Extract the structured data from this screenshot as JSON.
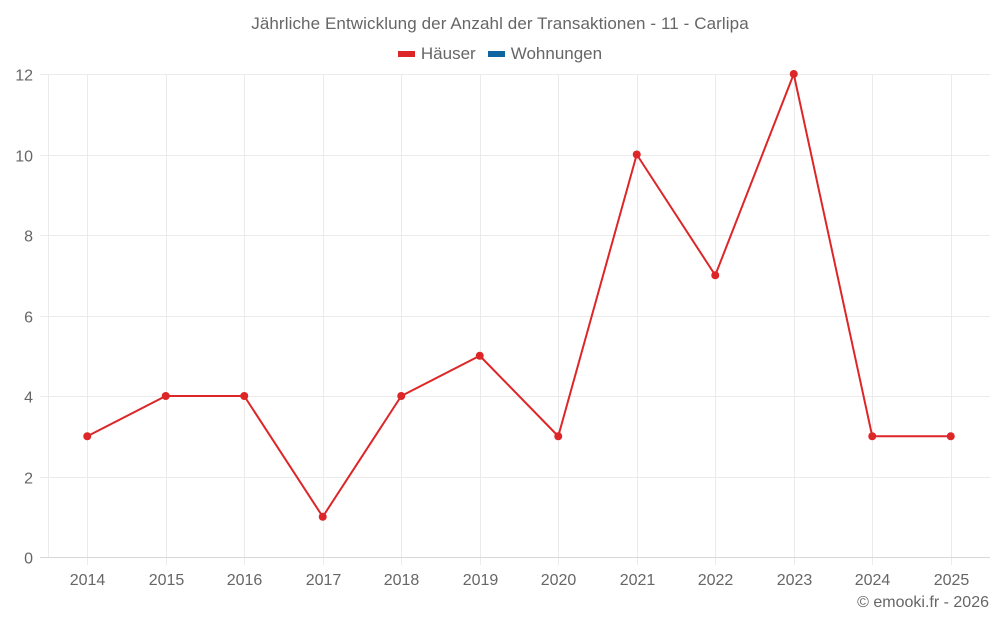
{
  "title": "Jährliche Entwicklung der Anzahl der Transaktionen - 11 - Carlipa",
  "legend": [
    {
      "label": "Häuser",
      "color": "#dd2628",
      "icon": "legend-swatch-red"
    },
    {
      "label": "Wohnungen",
      "color": "#0f65a0",
      "icon": "legend-swatch-blue"
    }
  ],
  "credits": "© emooki.fr - 2026",
  "colors": {
    "grid": "#ebebeb",
    "axis": "#d8d8d8",
    "series_haeuser": "#dd2628",
    "series_wohnungen": "#0f65a0",
    "text": "#666666"
  },
  "chart_data": {
    "type": "line",
    "title": "Jährliche Entwicklung der Anzahl der Transaktionen - 11 - Carlipa",
    "xlabel": "",
    "ylabel": "",
    "categories": [
      "2014",
      "2015",
      "2016",
      "2017",
      "2018",
      "2019",
      "2020",
      "2021",
      "2022",
      "2023",
      "2024",
      "2025"
    ],
    "series": [
      {
        "name": "Häuser",
        "color": "#dd2628",
        "values": [
          3,
          4,
          4,
          1,
          4,
          5,
          3,
          10,
          7,
          12,
          3,
          3
        ]
      },
      {
        "name": "Wohnungen",
        "color": "#0f65a0",
        "values": []
      }
    ],
    "yticks": [
      0,
      2,
      4,
      6,
      8,
      10,
      12
    ],
    "ylim": [
      0,
      12
    ],
    "grid": true,
    "legend_position": "top-center"
  }
}
